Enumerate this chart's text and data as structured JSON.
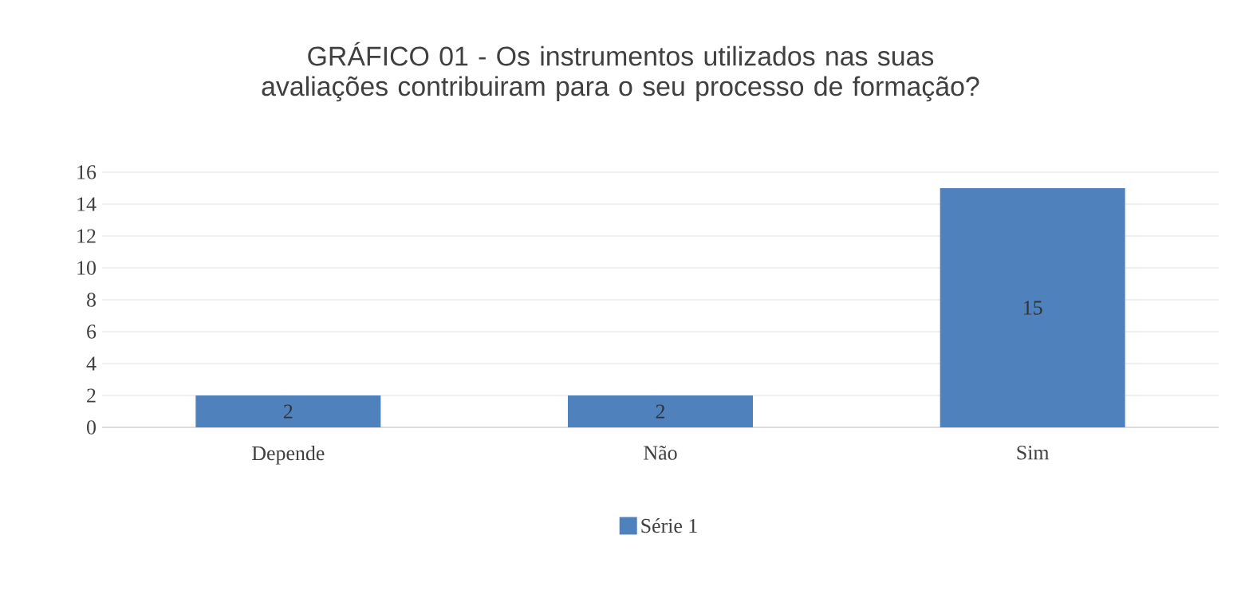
{
  "chart_data": {
    "type": "bar",
    "title": "GRÁFICO 01 - Os instrumentos utilizados nas suas avaliações contribuiram para o seu processo de formação?",
    "categories": [
      "Depende",
      "Não",
      "Sim"
    ],
    "series": [
      {
        "name": "Série 1",
        "color": "#4f81bd",
        "values": [
          2,
          2,
          15
        ]
      }
    ],
    "ylim": [
      0,
      16
    ],
    "yticks": [
      0,
      2,
      4,
      6,
      8,
      10,
      12,
      14,
      16
    ],
    "grid": "y",
    "legend": "bottom",
    "data_labels": true
  }
}
